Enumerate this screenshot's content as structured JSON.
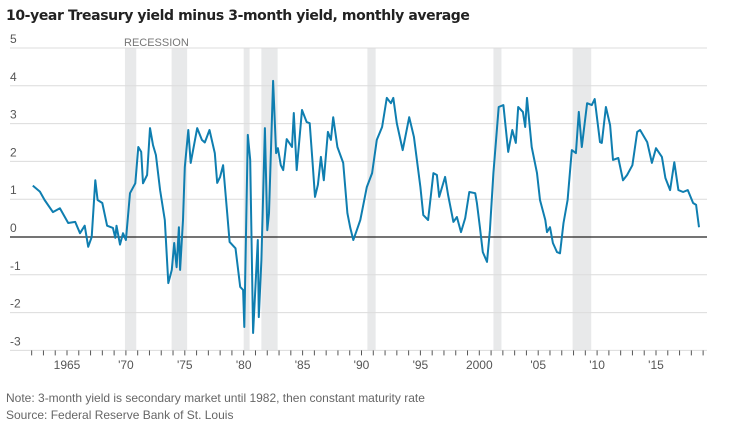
{
  "chart_data": {
    "type": "line",
    "title": "10-year Treasury yield minus 3-month yield, monthly average",
    "xlabel": "",
    "ylabel": "",
    "ylim": [
      -3,
      5
    ],
    "xlim": [
      1962,
      2019
    ],
    "grid": true,
    "y_ticks": [
      5,
      4,
      3,
      2,
      1,
      0,
      -1,
      -2,
      -3
    ],
    "y_tick_labels": [
      "5",
      "4",
      "3",
      "2",
      "1",
      "0",
      "-1",
      "-2",
      "-3"
    ],
    "x_ticks": [
      1965,
      1970,
      1975,
      1980,
      1985,
      1990,
      1995,
      2000,
      2005,
      2010,
      2015
    ],
    "x_tick_labels": [
      "1965",
      "'70",
      "'75",
      "'80",
      "'85",
      "'90",
      "'95",
      "2000",
      "'05",
      "'10",
      "'15"
    ],
    "line_color": "#0f7eb0",
    "recession_color": "#e8e9ea",
    "recession_label": "RECESSION",
    "recessions": [
      [
        1969.92,
        1970.88
      ],
      [
        1973.88,
        1975.2
      ],
      [
        1980.0,
        1980.5
      ],
      [
        1981.5,
        1982.88
      ],
      [
        1990.5,
        1991.2
      ],
      [
        2001.2,
        2001.88
      ],
      [
        2007.92,
        2009.5
      ]
    ],
    "series": [
      {
        "points": [
          [
            1962.1,
            1.36
          ],
          [
            1962.7,
            1.2
          ],
          [
            1963.1,
            0.98
          ],
          [
            1963.8,
            0.66
          ],
          [
            1964.4,
            0.76
          ],
          [
            1965.1,
            0.37
          ],
          [
            1965.7,
            0.4
          ],
          [
            1966.1,
            0.1
          ],
          [
            1966.5,
            0.3
          ],
          [
            1966.8,
            -0.26
          ],
          [
            1967.1,
            0
          ],
          [
            1967.4,
            1.5
          ],
          [
            1967.6,
            0.98
          ],
          [
            1968.0,
            0.9
          ],
          [
            1968.4,
            0.3
          ],
          [
            1968.9,
            0.24
          ],
          [
            1969.1,
            -0.02
          ],
          [
            1969.2,
            0.3
          ],
          [
            1969.5,
            -0.2
          ],
          [
            1969.75,
            0.1
          ],
          [
            1970.0,
            -0.08
          ],
          [
            1970.35,
            1.16
          ],
          [
            1970.8,
            1.42
          ],
          [
            1971.05,
            2.38
          ],
          [
            1971.3,
            2.25
          ],
          [
            1971.45,
            1.42
          ],
          [
            1971.8,
            1.64
          ],
          [
            1972.05,
            2.88
          ],
          [
            1972.3,
            2.43
          ],
          [
            1972.55,
            2.17
          ],
          [
            1972.9,
            1.24
          ],
          [
            1973.3,
            0.45
          ],
          [
            1973.6,
            -1.22
          ],
          [
            1973.9,
            -0.87
          ],
          [
            1974.1,
            -0.16
          ],
          [
            1974.3,
            -0.8
          ],
          [
            1974.5,
            0.26
          ],
          [
            1974.6,
            -0.87
          ],
          [
            1974.85,
            0.45
          ],
          [
            1975.0,
            1.85
          ],
          [
            1975.3,
            2.83
          ],
          [
            1975.5,
            1.96
          ],
          [
            1976.05,
            2.88
          ],
          [
            1976.45,
            2.57
          ],
          [
            1976.7,
            2.5
          ],
          [
            1977.1,
            2.83
          ],
          [
            1977.55,
            2.22
          ],
          [
            1977.75,
            1.43
          ],
          [
            1978.0,
            1.59
          ],
          [
            1978.25,
            1.9
          ],
          [
            1978.6,
            0.63
          ],
          [
            1978.8,
            -0.13
          ],
          [
            1979.3,
            -0.3
          ],
          [
            1979.7,
            -1.32
          ],
          [
            1979.95,
            -1.4
          ],
          [
            1980.05,
            -2.38
          ],
          [
            1980.35,
            2.7
          ],
          [
            1980.55,
            2.04
          ],
          [
            1980.8,
            -2.54
          ],
          [
            1981.2,
            -0.08
          ],
          [
            1981.28,
            -2.12
          ],
          [
            1981.5,
            -0.61
          ],
          [
            1981.8,
            2.88
          ],
          [
            1982.0,
            0.18
          ],
          [
            1982.15,
            0.63
          ],
          [
            1982.5,
            4.13
          ],
          [
            1982.75,
            2.22
          ],
          [
            1982.9,
            2.35
          ],
          [
            1983.15,
            1.9
          ],
          [
            1983.35,
            1.77
          ],
          [
            1983.65,
            2.59
          ],
          [
            1984.1,
            2.38
          ],
          [
            1984.25,
            3.28
          ],
          [
            1984.5,
            1.77
          ],
          [
            1984.95,
            3.36
          ],
          [
            1985.35,
            3.04
          ],
          [
            1985.6,
            3.01
          ],
          [
            1985.85,
            1.96
          ],
          [
            1986.05,
            1.06
          ],
          [
            1986.3,
            1.38
          ],
          [
            1986.55,
            2.12
          ],
          [
            1986.8,
            1.5
          ],
          [
            1987.15,
            2.78
          ],
          [
            1987.4,
            2.57
          ],
          [
            1987.6,
            3.17
          ],
          [
            1987.95,
            2.38
          ],
          [
            1988.45,
            1.96
          ],
          [
            1988.8,
            0.63
          ],
          [
            1989.05,
            0.24
          ],
          [
            1989.3,
            -0.08
          ],
          [
            1989.6,
            0.18
          ],
          [
            1989.9,
            0.45
          ],
          [
            1990.1,
            0.77
          ],
          [
            1990.45,
            1.32
          ],
          [
            1990.9,
            1.69
          ],
          [
            1991.3,
            2.57
          ],
          [
            1991.75,
            2.91
          ],
          [
            1992.15,
            3.68
          ],
          [
            1992.5,
            3.54
          ],
          [
            1992.7,
            3.68
          ],
          [
            1993.0,
            3.01
          ],
          [
            1993.5,
            2.3
          ],
          [
            1994.05,
            3.17
          ],
          [
            1994.45,
            2.65
          ],
          [
            1995.0,
            1.32
          ],
          [
            1995.25,
            0.58
          ],
          [
            1995.65,
            0.45
          ],
          [
            1996.1,
            1.69
          ],
          [
            1996.4,
            1.64
          ],
          [
            1996.6,
            1.06
          ],
          [
            1997.1,
            1.59
          ],
          [
            1997.35,
            1.11
          ],
          [
            1997.8,
            0.4
          ],
          [
            1998.1,
            0.53
          ],
          [
            1998.45,
            0.13
          ],
          [
            1998.8,
            0.5
          ],
          [
            1999.15,
            1.19
          ],
          [
            1999.65,
            1.16
          ],
          [
            1999.8,
            0.9
          ],
          [
            2000.05,
            0.26
          ],
          [
            2000.3,
            -0.4
          ],
          [
            2000.65,
            -0.66
          ],
          [
            2000.9,
            0.18
          ],
          [
            2001.2,
            1.69
          ],
          [
            2001.65,
            3.44
          ],
          [
            2002.05,
            3.49
          ],
          [
            2002.45,
            2.25
          ],
          [
            2002.8,
            2.83
          ],
          [
            2003.1,
            2.49
          ],
          [
            2003.3,
            3.44
          ],
          [
            2003.7,
            3.31
          ],
          [
            2003.9,
            2.91
          ],
          [
            2004.05,
            3.68
          ],
          [
            2004.45,
            2.38
          ],
          [
            2004.9,
            1.69
          ],
          [
            2005.15,
            0.98
          ],
          [
            2005.6,
            0.45
          ],
          [
            2005.75,
            0.13
          ],
          [
            2006.0,
            0.26
          ],
          [
            2006.25,
            -0.16
          ],
          [
            2006.6,
            -0.4
          ],
          [
            2006.85,
            -0.43
          ],
          [
            2007.15,
            0.37
          ],
          [
            2007.5,
            0.98
          ],
          [
            2007.85,
            2.3
          ],
          [
            2008.2,
            2.22
          ],
          [
            2008.45,
            3.31
          ],
          [
            2008.7,
            2.38
          ],
          [
            2009.15,
            3.54
          ],
          [
            2009.55,
            3.49
          ],
          [
            2009.8,
            3.65
          ],
          [
            2010.25,
            2.51
          ],
          [
            2010.4,
            2.49
          ],
          [
            2010.75,
            3.44
          ],
          [
            2011.1,
            2.96
          ],
          [
            2011.35,
            2.04
          ],
          [
            2011.8,
            2.09
          ],
          [
            2012.2,
            1.5
          ],
          [
            2012.55,
            1.64
          ],
          [
            2013.0,
            1.9
          ],
          [
            2013.4,
            2.78
          ],
          [
            2013.65,
            2.83
          ],
          [
            2014.25,
            2.51
          ],
          [
            2014.65,
            1.96
          ],
          [
            2015.0,
            2.35
          ],
          [
            2015.5,
            2.12
          ],
          [
            2015.8,
            1.56
          ],
          [
            2016.2,
            1.24
          ],
          [
            2016.55,
            1.98
          ],
          [
            2016.9,
            1.24
          ],
          [
            2017.3,
            1.19
          ],
          [
            2017.7,
            1.24
          ],
          [
            2018.15,
            0.9
          ],
          [
            2018.4,
            0.85
          ],
          [
            2018.65,
            0.26
          ]
        ]
      }
    ]
  },
  "notes": {
    "note": "Note: 3-month yield is secondary market until 1982, then constant maturity rate",
    "source": "Source: Federal Reserve Bank of St. Louis"
  }
}
